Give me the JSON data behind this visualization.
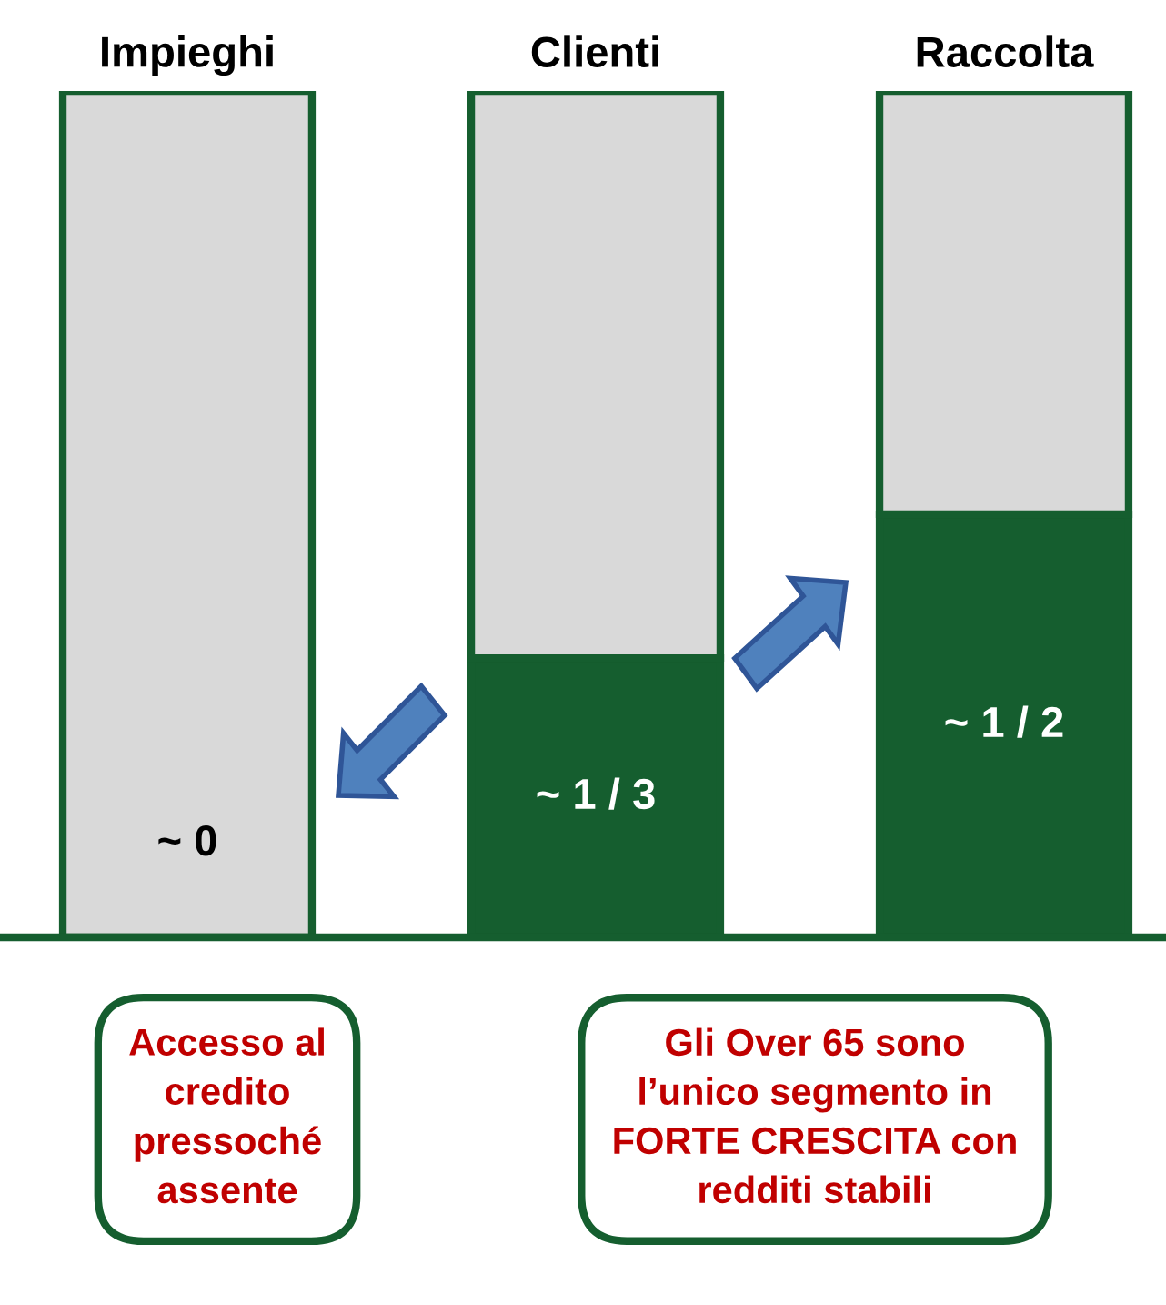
{
  "chart_data": {
    "type": "bar",
    "stacked": true,
    "categories": [
      "Impieghi",
      "Clienti",
      "Raccolta"
    ],
    "series": [
      {
        "color": "#155e2f",
        "values": [
          0,
          0.33,
          0.5
        ],
        "value_labels": [
          "~ 0",
          "~ 1 / 3",
          "~ 1 / 2"
        ]
      },
      {
        "color": "#d9d9d9",
        "values": [
          1,
          0.67,
          0.5
        ]
      }
    ],
    "annotations": [
      "Accesso al\ncredito\npressoché\nassente",
      "Gli Over 65 sono\nl’unico segmento in\nFORTE CRESCITA con\nredditi stabili"
    ],
    "grid": false,
    "legend": false
  }
}
